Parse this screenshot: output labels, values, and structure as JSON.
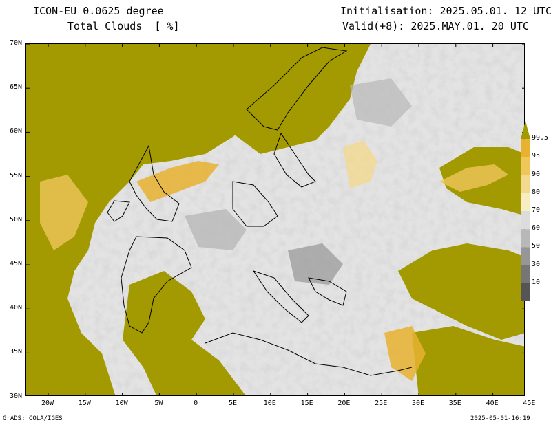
{
  "header": {
    "model": "ICON-EU 0.0625 degree",
    "field": "Total Clouds  [ %]",
    "init": "Initialisation: 2025.05.01. 12 UTC",
    "valid": "Valid(+8): 2025.MAY.01. 20 UTC"
  },
  "axes": {
    "lat_labels": [
      "70N",
      "65N",
      "60N",
      "55N",
      "50N",
      "45N",
      "40N",
      "35N",
      "30N"
    ],
    "lon_labels": [
      "20W",
      "15W",
      "10W",
      "5W",
      "0",
      "5E",
      "10E",
      "15E",
      "20E",
      "25E",
      "30E",
      "35E",
      "40E",
      "45E"
    ]
  },
  "colorbar": {
    "labels": [
      "99.5",
      "95",
      "90",
      "80",
      "70",
      "60",
      "50",
      "30",
      "10"
    ],
    "colors": [
      "#a29a00",
      "#e8b230",
      "#efc65a",
      "#f3d98e",
      "#f7ecc2",
      "#dcdcdc",
      "#b8b8b8",
      "#969696",
      "#767676",
      "#555555"
    ]
  },
  "footer": {
    "left": "GrADS: COLA/IGES",
    "right": "2025-05-01-16:19"
  }
}
